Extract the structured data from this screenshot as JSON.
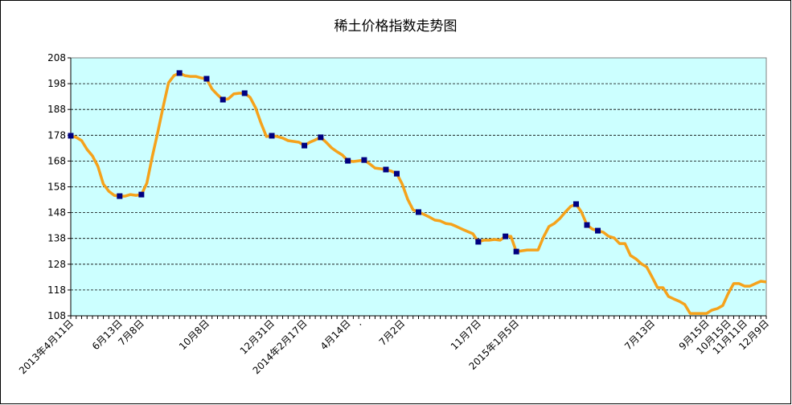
{
  "chart_data": {
    "type": "line",
    "title": "稀土价格指数走势图",
    "categories": [
      "2013年4月11日",
      null,
      null,
      null,
      null,
      null,
      null,
      null,
      null,
      "6月13日",
      null,
      null,
      null,
      "7月8日",
      null,
      null,
      null,
      null,
      null,
      null,
      null,
      null,
      null,
      null,
      null,
      "10月8日",
      null,
      null,
      null,
      null,
      null,
      null,
      null,
      null,
      null,
      null,
      null,
      "12月31日",
      null,
      null,
      null,
      null,
      null,
      "2014年2月17日",
      null,
      null,
      null,
      null,
      null,
      null,
      null,
      "4月14日",
      null,
      ".",
      null,
      null,
      null,
      null,
      null,
      null,
      null,
      "7月2日",
      null,
      null,
      null,
      null,
      null,
      null,
      null,
      null,
      null,
      null,
      null,
      null,
      null,
      "11月7日",
      null,
      null,
      null,
      null,
      null,
      null,
      "2015年1月5日",
      null,
      null,
      null,
      null,
      null,
      null,
      null,
      null,
      null,
      null,
      null,
      null,
      null,
      null,
      null,
      null,
      null,
      null,
      null,
      null,
      null,
      null,
      null,
      null,
      "7月13日",
      null,
      null,
      null,
      null,
      null,
      null,
      null,
      null,
      null,
      "9月15日",
      null,
      null,
      null,
      "10月15日",
      null,
      null,
      "11月11日",
      null,
      null,
      null,
      "12月9日"
    ],
    "series": [
      {
        "color": "#f5a21b",
        "values": [
          177.8,
          177.2,
          175.9,
          172.5,
          170.0,
          165.9,
          159.1,
          156.3,
          154.7,
          154.4,
          154.4,
          155.0,
          154.7,
          155.0,
          159.4,
          169.7,
          179.0,
          189.0,
          198.3,
          201.1,
          202.1,
          201.1,
          200.8,
          200.8,
          200.2,
          199.9,
          195.9,
          193.7,
          191.8,
          192.1,
          194.0,
          194.3,
          194.3,
          192.7,
          188.7,
          182.8,
          177.5,
          177.8,
          177.5,
          176.9,
          175.9,
          175.6,
          175.3,
          174.0,
          175.3,
          176.2,
          177.2,
          175.3,
          173.1,
          171.6,
          170.3,
          168.1,
          167.8,
          168.1,
          168.4,
          166.9,
          165.3,
          165.0,
          164.7,
          164.1,
          163.1,
          159.1,
          153.2,
          149.1,
          148.2,
          147.3,
          146.3,
          145.1,
          144.8,
          143.8,
          143.5,
          142.6,
          141.6,
          140.7,
          139.8,
          136.7,
          137.3,
          137.3,
          137.6,
          137.3,
          138.8,
          138.8,
          132.9,
          133.2,
          133.5,
          133.5,
          133.5,
          138.5,
          142.6,
          143.8,
          145.7,
          148.2,
          150.4,
          151.3,
          148.2,
          143.2,
          141.6,
          141.0,
          140.4,
          138.8,
          138.2,
          136.0,
          136.0,
          131.4,
          130.1,
          128.2,
          126.9,
          123.0,
          118.9,
          118.9,
          115.5,
          114.5,
          113.6,
          112.4,
          108.9,
          108.9,
          108.9,
          108.9,
          110.2,
          110.8,
          112.0,
          116.7,
          120.5,
          120.5,
          119.5,
          119.5,
          120.5,
          121.4,
          121.1
        ]
      },
      {
        "color": "#000080",
        "marker": "square",
        "values": [
          177.8,
          null,
          null,
          null,
          null,
          null,
          null,
          null,
          null,
          154.4,
          null,
          null,
          null,
          155.0,
          null,
          null,
          null,
          null,
          null,
          null,
          202.1,
          null,
          null,
          null,
          null,
          199.9,
          null,
          null,
          191.8,
          null,
          null,
          null,
          194.3,
          null,
          null,
          null,
          null,
          177.8,
          null,
          null,
          null,
          null,
          null,
          174.0,
          null,
          null,
          177.2,
          null,
          null,
          null,
          null,
          168.1,
          null,
          null,
          168.4,
          null,
          null,
          null,
          164.7,
          null,
          163.1,
          null,
          null,
          null,
          148.2,
          null,
          null,
          null,
          null,
          null,
          null,
          null,
          null,
          null,
          null,
          136.7,
          null,
          null,
          null,
          null,
          138.8,
          null,
          132.9,
          null,
          null,
          null,
          null,
          null,
          null,
          null,
          null,
          null,
          null,
          151.3,
          null,
          143.2,
          null,
          141.0,
          null,
          null,
          null,
          null,
          null,
          null,
          null,
          null,
          null,
          null,
          null,
          null,
          null,
          null,
          null,
          null,
          null,
          null,
          null,
          null,
          null,
          null,
          null,
          null,
          null,
          null,
          null,
          null,
          null,
          null,
          null
        ]
      }
    ],
    "ylim": [
      108,
      208
    ],
    "yticks": [
      108,
      118,
      128,
      138,
      148,
      158,
      168,
      178,
      188,
      198,
      208
    ],
    "grid": true
  }
}
